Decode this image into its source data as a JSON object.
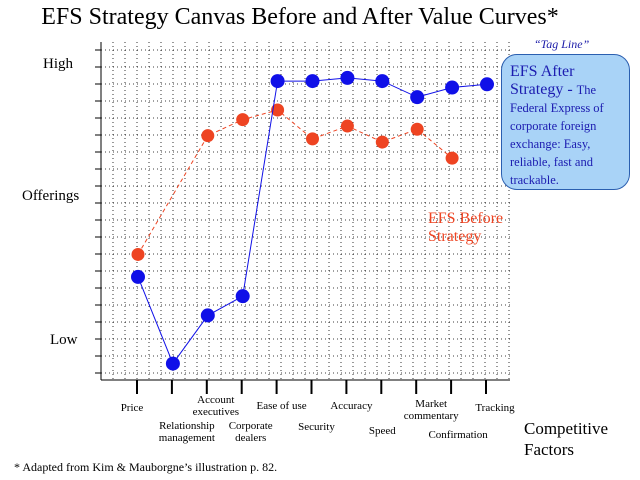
{
  "chart_data": {
    "type": "line",
    "title": "EFS Strategy Canvas Before and After Value Curves*",
    "y_tick_labels": [
      "High",
      "Offerings",
      "Low"
    ],
    "categories": [
      "Price",
      "Relationship management",
      "Account executives",
      "Corporate dealers",
      "Ease of use",
      "Security",
      "Accuracy",
      "Speed",
      "Market commentary",
      "Confirmation",
      "Tracking"
    ],
    "category_display": [
      "Price",
      "Relationship\nmanagement",
      "Account\nexecutives",
      "Corporate\ndealers",
      "Ease of use",
      "Security",
      "Accuracy",
      "Speed",
      "Market\ncommentary",
      "Confirmation",
      "Tracking"
    ],
    "xlabel": "Competitive Factors",
    "ylim": [
      0,
      100
    ],
    "grid": true,
    "series": [
      {
        "name": "EFS Before Strategy",
        "color": "#ee4422",
        "values": [
          36,
          null,
          73,
          78,
          81,
          72,
          76,
          71,
          75,
          66,
          null
        ]
      },
      {
        "name": "EFS After Strategy",
        "color": "#1010e8",
        "values": [
          29,
          2,
          17,
          23,
          90,
          90,
          91,
          90,
          85,
          88,
          89
        ]
      }
    ],
    "annotations": {
      "tag_line": "“Tag Line”",
      "after_title": "EFS After Strategy -",
      "after_text": "The Federal Express of corporate foreign exchange: Easy, reliable, fast and trackable."
    },
    "footnote": "* Adapted from Kim & Mauborgne’s illustration p. 82."
  }
}
